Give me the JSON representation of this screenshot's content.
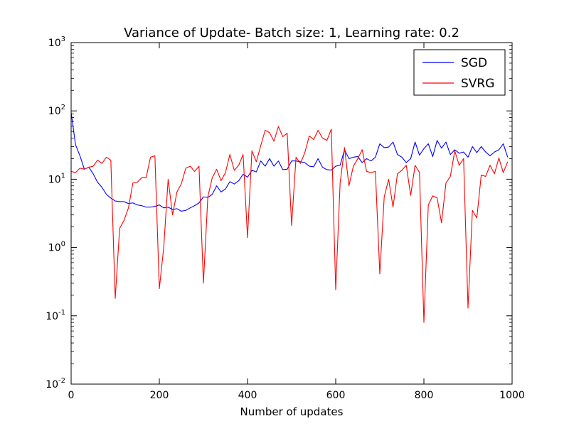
{
  "chart_data": {
    "type": "line",
    "title": "Variance of Update- Batch size: 1, Learning rate: 0.2",
    "xlabel": "Number of updates",
    "ylabel": "",
    "xlim": [
      0,
      1000
    ],
    "ylim": [
      0.01,
      1000
    ],
    "yscale": "log",
    "grid": false,
    "legend_position": "top-right",
    "x_ticks": [
      "0",
      "200",
      "400",
      "600",
      "800",
      "1000"
    ],
    "y_ticks": [
      {
        "base": "10",
        "exp": "-2"
      },
      {
        "base": "10",
        "exp": "-1"
      },
      {
        "base": "10",
        "exp": "0"
      },
      {
        "base": "10",
        "exp": "1"
      },
      {
        "base": "10",
        "exp": "2"
      },
      {
        "base": "10",
        "exp": "3"
      }
    ],
    "series": [
      {
        "name": "SGD",
        "color": "#0000ff",
        "x": [
          0,
          10,
          20,
          30,
          40,
          50,
          60,
          70,
          80,
          90,
          100,
          110,
          120,
          130,
          140,
          150,
          160,
          170,
          180,
          190,
          200,
          210,
          220,
          230,
          240,
          250,
          260,
          270,
          280,
          290,
          300,
          310,
          320,
          330,
          340,
          350,
          360,
          370,
          380,
          390,
          400,
          410,
          420,
          430,
          440,
          450,
          460,
          470,
          480,
          490,
          500,
          510,
          520,
          530,
          540,
          550,
          560,
          570,
          580,
          590,
          600,
          610,
          620,
          630,
          640,
          650,
          660,
          670,
          680,
          690,
          700,
          710,
          720,
          730,
          740,
          750,
          760,
          770,
          780,
          790,
          800,
          810,
          820,
          830,
          840,
          850,
          860,
          870,
          880,
          890,
          900,
          910,
          920,
          930,
          940,
          950,
          960,
          970,
          980,
          990
        ],
        "y": [
          95,
          32,
          22,
          14,
          15,
          12,
          9,
          7.6,
          6,
          5.3,
          4.8,
          4.7,
          4.7,
          4.4,
          4.5,
          4.2,
          4.1,
          3.9,
          3.9,
          4.0,
          4.2,
          3.8,
          3.9,
          3.6,
          3.7,
          3.4,
          3.5,
          3.8,
          4.1,
          4.5,
          5.5,
          5.4,
          6.0,
          8.0,
          6.5,
          7.2,
          9.2,
          8.5,
          9.5,
          11.8,
          10.7,
          13.5,
          12.8,
          18.5,
          15.5,
          20,
          15.5,
          18.5,
          13.8,
          14,
          18.5,
          18.5,
          18,
          17.5,
          15.5,
          15.2,
          20,
          15,
          13.8,
          13.6,
          15.5,
          16,
          27,
          20,
          21,
          21.5,
          17.5,
          20,
          18.5,
          21,
          33,
          29,
          29.5,
          35,
          23,
          21,
          17.5,
          20,
          35,
          22.5,
          28,
          33,
          21.5,
          37,
          28.5,
          35,
          23,
          27,
          24,
          25,
          21,
          30,
          24.5,
          30,
          25,
          22,
          25,
          27,
          33,
          21
        ]
      },
      {
        "name": "SVRG",
        "color": "#ff0000",
        "x": [
          0,
          10,
          20,
          30,
          40,
          50,
          60,
          70,
          80,
          90,
          100,
          110,
          120,
          130,
          140,
          150,
          160,
          170,
          180,
          190,
          200,
          210,
          220,
          230,
          240,
          250,
          260,
          270,
          280,
          290,
          300,
          310,
          320,
          330,
          340,
          350,
          360,
          370,
          380,
          390,
          400,
          410,
          420,
          430,
          440,
          450,
          460,
          470,
          480,
          490,
          500,
          510,
          520,
          530,
          540,
          550,
          560,
          570,
          580,
          590,
          600,
          610,
          620,
          630,
          640,
          650,
          660,
          670,
          680,
          690,
          700,
          710,
          720,
          730,
          740,
          750,
          760,
          770,
          780,
          790,
          800,
          810,
          820,
          830,
          840,
          850,
          860,
          870,
          880,
          890,
          900,
          910,
          920,
          930,
          940,
          950,
          960,
          970,
          980,
          990
        ],
        "y": [
          13,
          12.5,
          14.5,
          14,
          15,
          15.5,
          19,
          17,
          21,
          19,
          0.18,
          1.9,
          2.5,
          3.8,
          8.8,
          9,
          10.5,
          10.5,
          21,
          22,
          0.25,
          1.0,
          10,
          3.0,
          6.5,
          8.6,
          14.5,
          15.5,
          13,
          15.5,
          0.3,
          5.5,
          10.5,
          14,
          9.5,
          12.5,
          23,
          13.5,
          16,
          23,
          1.4,
          26,
          18,
          31,
          52,
          48,
          36,
          59,
          42,
          47,
          2.1,
          21,
          17,
          24.5,
          43,
          38,
          52,
          40,
          37,
          54,
          0.24,
          8.8,
          29,
          8.0,
          15.5,
          20,
          27,
          13,
          12.5,
          13,
          0.41,
          5.5,
          10,
          3.9,
          12,
          13.5,
          16,
          5.8,
          16,
          12.5,
          0.08,
          4.2,
          5.7,
          5.3,
          2.3,
          8.8,
          11,
          26,
          16,
          20,
          0.13,
          3.5,
          2.7,
          11.5,
          11,
          16,
          12,
          20.5,
          12.5,
          18
        ]
      }
    ]
  }
}
